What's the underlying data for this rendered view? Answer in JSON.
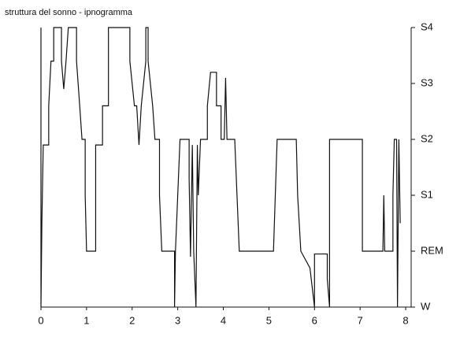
{
  "chart_data": {
    "type": "line",
    "title": "struttura del sonno - ipnogramma",
    "x": [
      0,
      0,
      0.02,
      0.05,
      0.17,
      0.17,
      0.22,
      0.28,
      0.28,
      0.45,
      0.45,
      0.5,
      0.55,
      0.6,
      0.78,
      0.78,
      0.85,
      0.9,
      0.97,
      0.97,
      1.0,
      1.2,
      1.2,
      1.35,
      1.35,
      1.48,
      1.48,
      1.95,
      1.95,
      2.05,
      2.1,
      2.15,
      2.2,
      2.3,
      2.3,
      2.35,
      2.35,
      2.45,
      2.5,
      2.6,
      2.6,
      2.65,
      2.93,
      2.93,
      2.95,
      3.0,
      3.05,
      3.25,
      3.25,
      3.28,
      3.32,
      3.35,
      3.4,
      3.43,
      3.45,
      3.5,
      3.65,
      3.65,
      3.72,
      3.85,
      3.85,
      3.95,
      3.95,
      4.02,
      4.05,
      4.08,
      4.25,
      4.3,
      4.35,
      5.1,
      5.18,
      5.6,
      5.63,
      5.7,
      5.9,
      6.0,
      6.0,
      6.28,
      6.28,
      6.33,
      6.33,
      7.05,
      7.05,
      7.5,
      7.52,
      7.54,
      7.72,
      7.72,
      7.75,
      7.8,
      7.82,
      7.85,
      7.88
    ],
    "series": [
      {
        "color": "#111111",
        "values": [
          5,
          0,
          1.5,
          2.9,
          2.9,
          3.6,
          4.4,
          4.4,
          5,
          5,
          4.4,
          3.9,
          4.4,
          5,
          5,
          4.4,
          3.6,
          3.0,
          3.0,
          2.0,
          1.0,
          1.0,
          2.9,
          2.9,
          3.6,
          3.6,
          5,
          5,
          4.4,
          3.6,
          3.6,
          2.9,
          3.6,
          4.4,
          5,
          5,
          4.4,
          3.6,
          3.0,
          3.0,
          2.0,
          1.0,
          1.0,
          0,
          1.0,
          2.0,
          3.0,
          3.0,
          2.3,
          0.9,
          2.9,
          1.0,
          0,
          2.9,
          2.0,
          3.0,
          3.0,
          3.6,
          4.2,
          4.2,
          3.6,
          3.6,
          3.0,
          3.0,
          4.1,
          3.0,
          3.0,
          2.0,
          1.0,
          1.0,
          3.0,
          3.0,
          2.0,
          1.0,
          0.7,
          0,
          0.95,
          0.95,
          0.5,
          0,
          3.0,
          3.0,
          1.0,
          1.0,
          2.0,
          1.0,
          1.0,
          2.0,
          3.0,
          3.0,
          0,
          3.0,
          1.5
        ]
      }
    ],
    "xlim": [
      0,
      8.12
    ],
    "xticks": [
      0,
      1,
      2,
      3,
      4,
      5,
      6,
      7,
      8
    ],
    "ylim": [
      0,
      5
    ],
    "yticks": [
      {
        "value": 0,
        "label": "W"
      },
      {
        "value": 1,
        "label": "REM"
      },
      {
        "value": 2,
        "label": "S1"
      },
      {
        "value": 3,
        "label": "S2"
      },
      {
        "value": 4,
        "label": "S3"
      },
      {
        "value": 5,
        "label": "S4"
      }
    ]
  }
}
